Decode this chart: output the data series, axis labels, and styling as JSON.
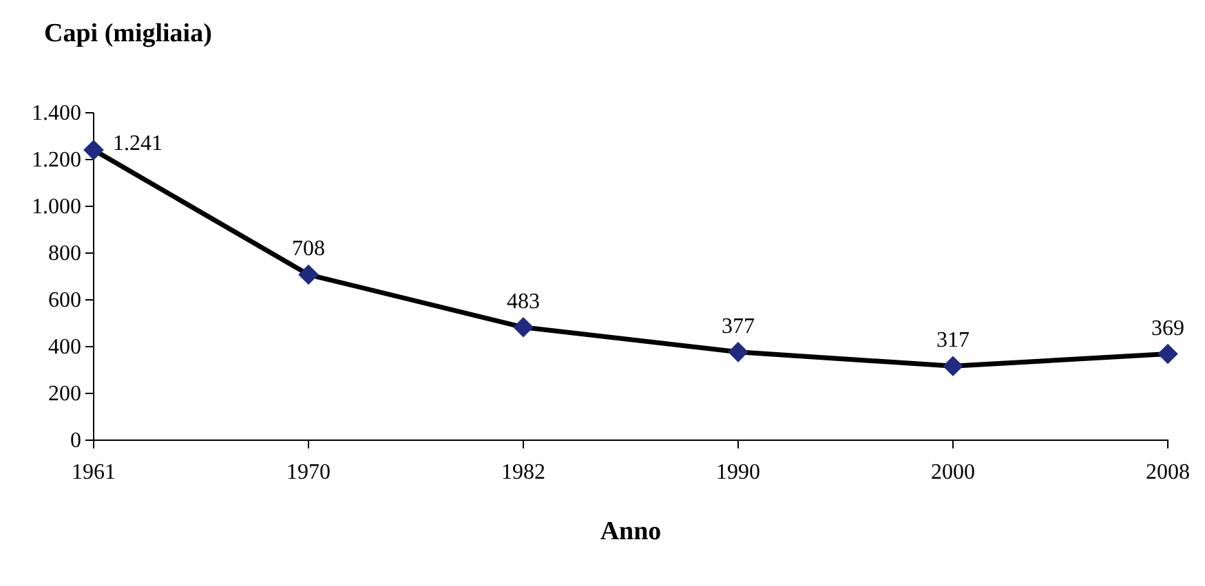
{
  "chart_data": {
    "type": "line",
    "ylabel": "Capi (migliaia)",
    "xlabel": "Anno",
    "categories": [
      "1961",
      "1970",
      "1982",
      "1990",
      "2000",
      "2008"
    ],
    "series": [
      {
        "color": "#1f2a80",
        "values": [
          1241,
          708,
          483,
          377,
          317,
          369
        ],
        "value_labels": [
          "1.241",
          "708",
          "483",
          "377",
          "317",
          "369"
        ]
      }
    ],
    "ylim": [
      0,
      1400
    ],
    "yticks": [
      0,
      200,
      400,
      600,
      800,
      {
        "value": 1000,
        "label": "1.000"
      },
      {
        "value": 1200,
        "label": "1.200"
      },
      {
        "value": 1400,
        "label": "1.400"
      }
    ],
    "marker": "diamond",
    "line_style": "solid",
    "grid": false
  }
}
